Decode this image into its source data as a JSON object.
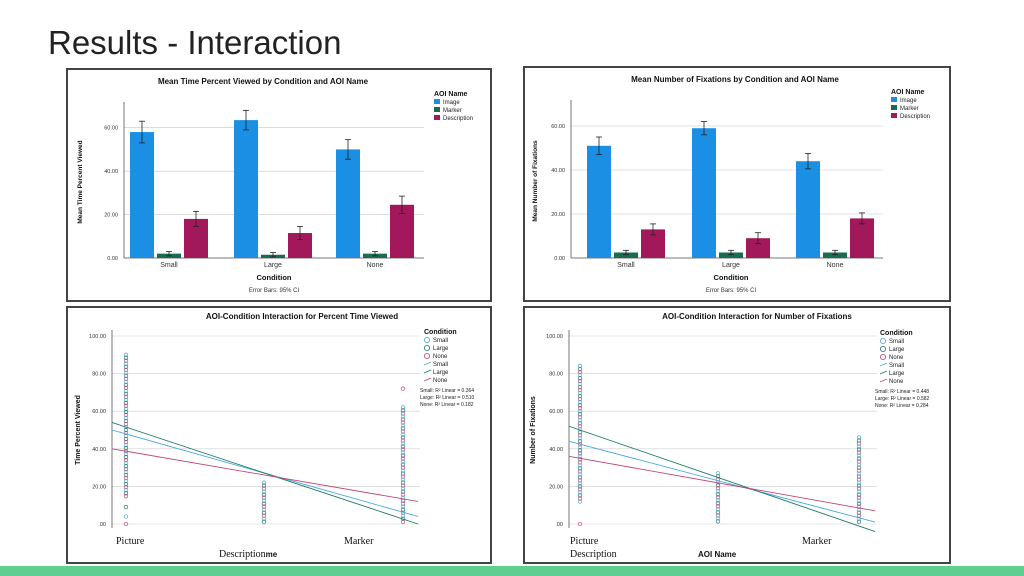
{
  "slide": {
    "title": "Results - Interaction"
  },
  "colors": {
    "image": "#1a8fe3",
    "marker": "#186b55",
    "description": "#a2185a",
    "small": "#49a9e0",
    "large": "#1e7a69",
    "none": "#c2467a",
    "bar": "#5fcf8f"
  },
  "overlay_labels": {
    "tl_picture": "Picture",
    "tl_description": "Description",
    "tl_marker": "Marker",
    "tl_frag": "me",
    "tr_picture": "Picture",
    "tr_description": "Description",
    "tr_marker": "Marker",
    "tr_xlabel": "AOI Name"
  },
  "chart_data": [
    {
      "type": "bar",
      "title": "Mean Time Percent Viewed by Condition and AOI Name",
      "xlabel": "Condition",
      "ylabel": "Mean Time Percent Viewed",
      "categories": [
        "Small",
        "Large",
        "None"
      ],
      "ylim": [
        0,
        70
      ],
      "yticks": [
        0,
        20,
        40,
        60
      ],
      "yticklabels": [
        "0.00",
        "20.00",
        "40.00",
        "60.00"
      ],
      "legend_title": "AOI Name",
      "series": [
        {
          "name": "Image",
          "values": [
            58,
            63.5,
            50
          ],
          "err": [
            5,
            4.5,
            4.5
          ]
        },
        {
          "name": "Marker",
          "values": [
            2,
            1.5,
            2
          ],
          "err": [
            1,
            1,
            1
          ]
        },
        {
          "name": "Description",
          "values": [
            18,
            11.5,
            24.5
          ],
          "err": [
            3.5,
            3,
            4
          ]
        }
      ],
      "footnote": "Error Bars: 95% CI"
    },
    {
      "type": "bar",
      "title": "Mean Number of Fixations by Condition and AOI Name",
      "xlabel": "Condition",
      "ylabel": "Mean Number of Fixations",
      "categories": [
        "Small",
        "Large",
        "None"
      ],
      "ylim": [
        0,
        70
      ],
      "yticks": [
        0,
        20,
        40,
        60
      ],
      "yticklabels": [
        "0.00",
        "20.00",
        "40.00",
        "60.00"
      ],
      "legend_title": "AOI Name",
      "series": [
        {
          "name": "Image",
          "values": [
            51,
            59,
            44
          ],
          "err": [
            4,
            3,
            3.5
          ]
        },
        {
          "name": "Marker",
          "values": [
            2.5,
            2.5,
            2.5
          ],
          "err": [
            1,
            1,
            1
          ]
        },
        {
          "name": "Description",
          "values": [
            13,
            9,
            18
          ],
          "err": [
            2.5,
            2.5,
            2.5
          ]
        }
      ],
      "footnote": "Error Bars: 95% CI"
    },
    {
      "type": "scatter",
      "title": "AOI-Condition Interaction for Percent Time Viewed",
      "ylabel": "Time Percent Viewed",
      "xcategories": [
        "Picture",
        "Description",
        "Marker"
      ],
      "ylim": [
        0,
        100
      ],
      "yticks": [
        0,
        20,
        40,
        60,
        80,
        100
      ],
      "yticklabels": [
        ".00",
        "20.00",
        "40.00",
        "60.00",
        "80.00",
        "100.00"
      ],
      "legend_title": "Condition",
      "legend_markers": [
        "Small",
        "Large",
        "None"
      ],
      "legend_lines": [
        "Small",
        "Large",
        "None"
      ],
      "r2_text": [
        "Small: R² Linear = 0.364",
        "Large: R² Linear = 0.510",
        "None: R² Linear = 0.182"
      ],
      "groups": [
        {
          "x": "Picture",
          "range": [
            14,
            90
          ],
          "outliers": [
            0,
            4,
            9
          ]
        },
        {
          "x": "Description",
          "range": [
            0,
            22
          ],
          "outliers": []
        },
        {
          "x": "Marker",
          "range": [
            0,
            62
          ],
          "outliers": [
            72
          ]
        }
      ],
      "lines": [
        {
          "name": "Small",
          "y_start": 50,
          "y_end": 4
        },
        {
          "name": "Large",
          "y_start": 54,
          "y_end": 0
        },
        {
          "name": "None",
          "y_start": 40,
          "y_end": 12
        }
      ]
    },
    {
      "type": "scatter",
      "title": "AOI-Condition Interaction for Number of Fixations",
      "ylabel": "Number of Fixations",
      "xcategories": [
        "Picture",
        "Description",
        "Marker"
      ],
      "ylim": [
        0,
        100
      ],
      "yticks": [
        0,
        20,
        40,
        60,
        80,
        100
      ],
      "yticklabels": [
        ".00",
        "20.00",
        "40.00",
        "60.00",
        "80.00",
        "100.00"
      ],
      "legend_title": "Condition",
      "legend_markers": [
        "Small",
        "Large",
        "None"
      ],
      "legend_lines": [
        "Small",
        "Large",
        "None"
      ],
      "r2_text": [
        "Small: R² Linear = 0.448",
        "Large: R² Linear = 0.582",
        "None: R² Linear = 0.284"
      ],
      "groups": [
        {
          "x": "Picture",
          "range": [
            12,
            84
          ],
          "outliers": [
            0
          ]
        },
        {
          "x": "Description",
          "range": [
            0,
            27
          ],
          "outliers": []
        },
        {
          "x": "Marker",
          "range": [
            0,
            46
          ],
          "outliers": []
        }
      ],
      "lines": [
        {
          "name": "Small",
          "y_start": 44,
          "y_end": 1
        },
        {
          "name": "Large",
          "y_start": 52,
          "y_end": -4
        },
        {
          "name": "None",
          "y_start": 36,
          "y_end": 7
        }
      ]
    }
  ]
}
